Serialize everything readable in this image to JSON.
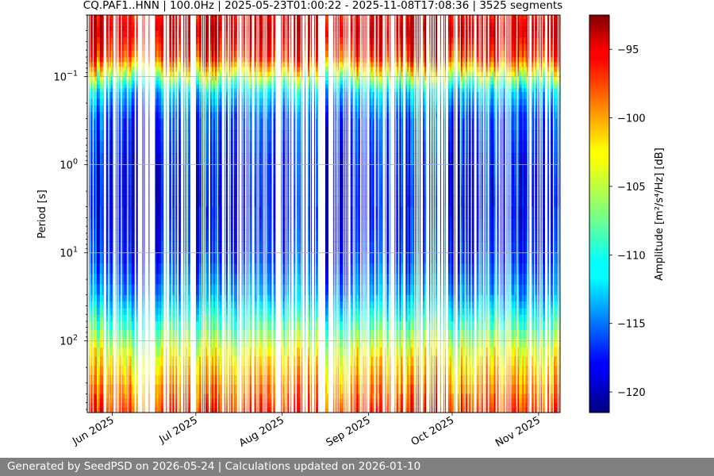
{
  "chart_data": {
    "type": "heatmap",
    "title": "CQ.PAF1..HNN | 100.0Hz | 2025-05-23T01:00:22 - 2025-11-08T17:08:36 | 3525 segments",
    "xlabel": "",
    "ylabel": "Period [s]",
    "x_range": [
      "2025-05-23T01:00:22",
      "2025-11-08T17:08:36"
    ],
    "x_ticks": [
      {
        "date": "2025-06-01",
        "label": "Jun 2025"
      },
      {
        "date": "2025-07-01",
        "label": "Jul 2025"
      },
      {
        "date": "2025-08-01",
        "label": "Aug 2025"
      },
      {
        "date": "2025-09-01",
        "label": "Sep 2025"
      },
      {
        "date": "2025-10-01",
        "label": "Oct 2025"
      },
      {
        "date": "2025-11-01",
        "label": "Nov 2025"
      }
    ],
    "y_scale": "log",
    "y_inverted": true,
    "y_range": [
      0.02,
      650
    ],
    "y_ticks": [
      {
        "value": 0.1,
        "base": "10",
        "exp": "−1"
      },
      {
        "value": 1,
        "base": "10",
        "exp": "0"
      },
      {
        "value": 10,
        "base": "10",
        "exp": "1"
      },
      {
        "value": 100,
        "base": "10",
        "exp": "2"
      }
    ],
    "grid": true,
    "segments": 3525,
    "colorbar": {
      "label": "Amplitude [m²/s⁴/Hz] [dB]",
      "range": [
        -121.5,
        -92.5
      ],
      "ticks": [
        -95,
        -100,
        -105,
        -110,
        -115,
        -120
      ],
      "tick_labels": [
        "−95",
        "−100",
        "−105",
        "−110",
        "−115",
        "−120"
      ],
      "colormap": "jet"
    },
    "period_profile_db": [
      {
        "period": 0.02,
        "low": -98,
        "high": -93
      },
      {
        "period": 0.03,
        "low": -96,
        "high": -93
      },
      {
        "period": 0.06,
        "low": -101,
        "high": -93
      },
      {
        "period": 0.1,
        "low": -110,
        "high": -100
      },
      {
        "period": 0.15,
        "low": -115,
        "high": -108
      },
      {
        "period": 0.3,
        "low": -119,
        "high": -112
      },
      {
        "period": 1,
        "low": -121,
        "high": -113
      },
      {
        "period": 3,
        "low": -121,
        "high": -114
      },
      {
        "period": 10,
        "low": -120,
        "high": -113
      },
      {
        "period": 30,
        "low": -116,
        "high": -110
      },
      {
        "period": 60,
        "low": -112,
        "high": -106
      },
      {
        "period": 150,
        "low": -106,
        "high": -100
      },
      {
        "period": 400,
        "low": -102,
        "high": -96
      },
      {
        "period": 650,
        "low": -100,
        "high": -94
      }
    ],
    "gaps": [
      {
        "start": "2025-08-14",
        "end": "2025-08-18"
      }
    ]
  },
  "footer": {
    "text": "Generated by SeedPSD on 2026-05-24 | Calculations updated on 2026-01-10"
  }
}
